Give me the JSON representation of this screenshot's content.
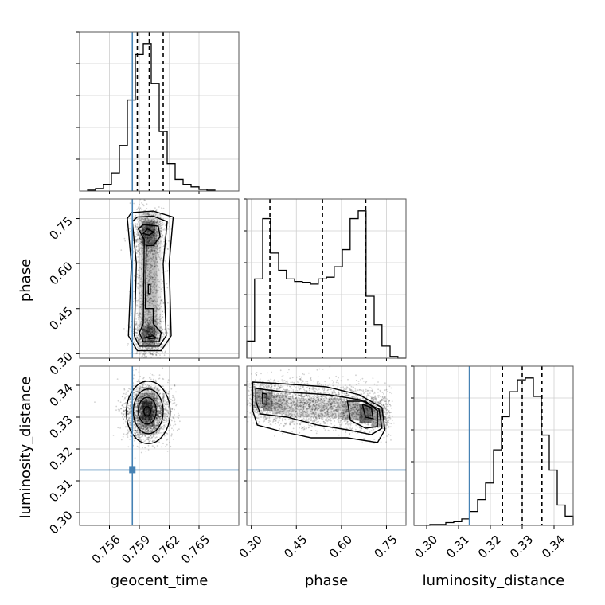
{
  "chart_data": {
    "type": "corner",
    "parameters": [
      "geocent_time",
      "phase",
      "luminosity_distance"
    ],
    "truths": {
      "geocent_time": 0.7583,
      "phase": null,
      "luminosity_distance": 0.3134
    },
    "truth_color": "#4682b4",
    "line_color": "#000000",
    "grid": true,
    "ranges": {
      "geocent_time": [
        0.753,
        0.769
      ],
      "phase": [
        0.285,
        0.815
      ],
      "luminosity_distance": [
        0.296,
        0.346
      ]
    },
    "ticks": {
      "geocent_time": [
        "0.756",
        "0.759",
        "0.762",
        "0.765"
      ],
      "phase": [
        "0.30",
        "0.45",
        "0.60",
        "0.75"
      ],
      "luminosity_distance": [
        "0.30",
        "0.31",
        "0.32",
        "0.33",
        "0.34"
      ]
    },
    "quantiles": {
      "geocent_time": [
        0.7588,
        0.76,
        0.7614
      ],
      "phase": [
        0.362,
        0.537,
        0.681
      ],
      "luminosity_distance": [
        0.3238,
        0.33,
        0.3362
      ]
    },
    "histograms": {
      "geocent_time": {
        "edges": [
          0.7538,
          0.7546,
          0.7554,
          0.7562,
          0.757,
          0.7578,
          0.7586,
          0.7594,
          0.7602,
          0.761,
          0.7618,
          0.7626,
          0.7634,
          0.7642,
          0.765,
          0.7658,
          0.7666
        ],
        "counts": [
          1,
          3,
          8,
          22,
          55,
          110,
          165,
          178,
          130,
          72,
          33,
          14,
          8,
          5,
          2,
          1
        ]
      },
      "phase": {
        "edges": [
          0.285,
          0.311,
          0.338,
          0.364,
          0.391,
          0.417,
          0.444,
          0.47,
          0.497,
          0.523,
          0.55,
          0.576,
          0.603,
          0.629,
          0.656,
          0.682,
          0.709,
          0.735,
          0.762,
          0.788,
          0.815
        ],
        "counts": [
          20,
          92,
          162,
          122,
          102,
          92,
          89,
          88,
          86,
          92,
          94,
          106,
          126,
          162,
          171,
          72,
          39,
          14,
          2,
          0
        ]
      },
      "luminosity_distance": {
        "edges": [
          0.296,
          0.2985,
          0.301,
          0.3035,
          0.306,
          0.3085,
          0.311,
          0.3135,
          0.316,
          0.3185,
          0.321,
          0.3235,
          0.326,
          0.3285,
          0.331,
          0.3335,
          0.336,
          0.3385,
          0.341,
          0.3435,
          0.346
        ],
        "counts": [
          0,
          0,
          1,
          1,
          3,
          4,
          7,
          15,
          28,
          46,
          82,
          118,
          145,
          158,
          160,
          140,
          98,
          60,
          22,
          10
        ]
      }
    },
    "pair_peaks": {
      "phase_vs_geocent_time": [
        [
          0.7596,
          0.705
        ],
        [
          0.76,
          0.355
        ]
      ],
      "luminosity_distance_vs_geocent_time": [
        [
          0.7597,
          0.332
        ]
      ],
      "luminosity_distance_vs_phase": [
        [
          0.345,
          0.3355
        ],
        [
          0.682,
          0.3315
        ]
      ]
    }
  }
}
